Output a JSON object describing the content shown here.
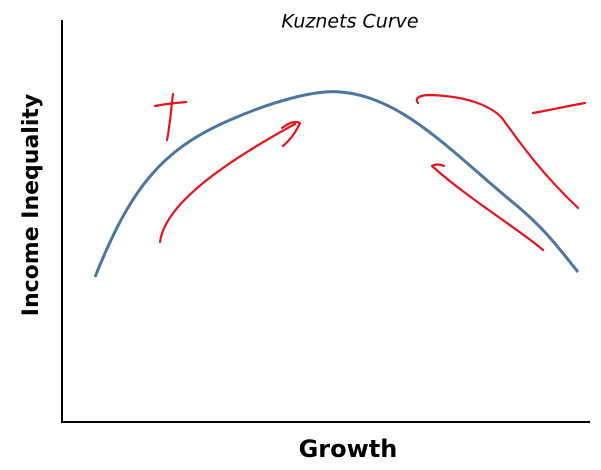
{
  "title": "Kuznets Curve",
  "x_axis_label": "Growth",
  "y_axis_label": "Income Inequality"
}
